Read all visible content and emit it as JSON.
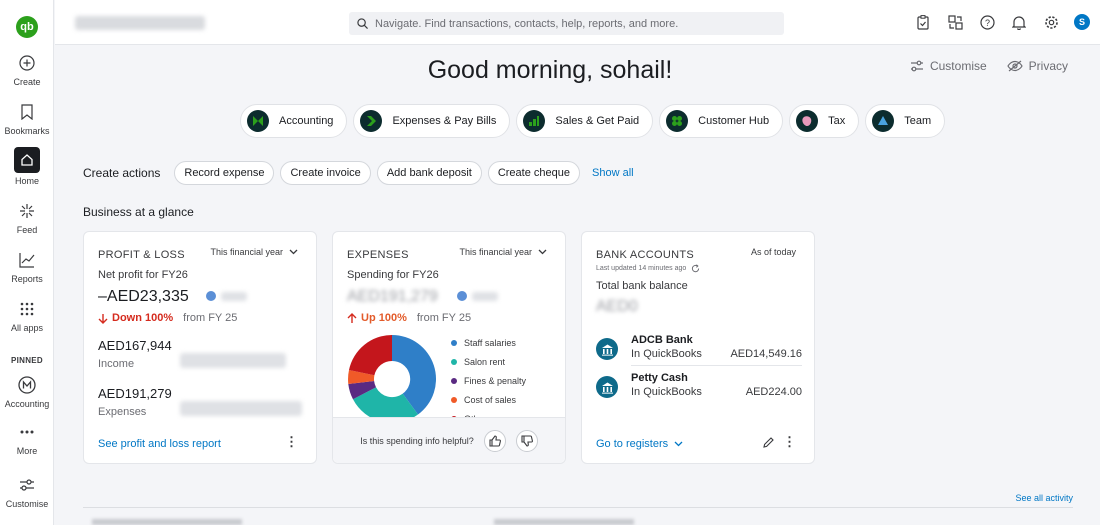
{
  "app": {
    "logo_text": "qb",
    "company_name_blurred": true
  },
  "search": {
    "placeholder": "Navigate. Find transactions, contacts, help, reports, and more."
  },
  "rail": {
    "items": [
      {
        "label": "Create",
        "icon": "plus-circle-icon"
      },
      {
        "label": "Bookmarks",
        "icon": "bookmark-icon"
      },
      {
        "label": "Home",
        "icon": "home-icon",
        "active": true
      },
      {
        "label": "Feed",
        "icon": "sparkle-icon"
      },
      {
        "label": "Reports",
        "icon": "line-chart-icon"
      },
      {
        "label": "All apps",
        "icon": "grid-icon"
      }
    ],
    "pinned_label": "PINNED",
    "pinned": [
      {
        "label": "Accounting",
        "icon": "accounting-icon"
      },
      {
        "label": "More",
        "icon": "more-dots-icon"
      }
    ],
    "customise_label": "Customise"
  },
  "topbar": {
    "icons": [
      "task-icon",
      "apps-switch-icon",
      "help-icon",
      "bell-icon",
      "gear-icon"
    ],
    "avatar": "S"
  },
  "greeting": "Good morning, sohail!",
  "page_links": {
    "customise": "Customise",
    "privacy": "Privacy"
  },
  "hubs": [
    {
      "label": "Accounting",
      "color": "#2ca01c"
    },
    {
      "label": "Expenses & Pay Bills",
      "color": "#2ca01c"
    },
    {
      "label": "Sales & Get Paid",
      "color": "#2ca01c"
    },
    {
      "label": "Customer Hub",
      "color": "#2ca01c"
    },
    {
      "label": "Tax",
      "color": "#e89abc"
    },
    {
      "label": "Team",
      "color": "#4aa3df"
    }
  ],
  "create_actions": {
    "title": "Create actions",
    "buttons": [
      "Record expense",
      "Create invoice",
      "Add bank deposit",
      "Create cheque"
    ],
    "show_all": "Show all"
  },
  "glance_title": "Business at a glance",
  "profit_loss": {
    "title": "PROFIT & LOSS",
    "period": "This financial year",
    "subtitle": "Net profit for FY26",
    "net": "–AED23,335",
    "change": "Down 100%",
    "from": "from FY 25",
    "income_value": "AED167,944",
    "income_label": "Income",
    "expenses_value": "AED191,279",
    "expenses_label": "Expenses",
    "link": "See profit and loss report"
  },
  "expenses": {
    "title": "EXPENSES",
    "period": "This financial year",
    "subtitle": "Spending for FY26",
    "total": "AED191,279",
    "change": "Up 100%",
    "from": "from FY 25",
    "legend": [
      {
        "label": "Staff salaries",
        "color": "#2f7fc8"
      },
      {
        "label": "Salon rent",
        "color": "#1fb5a8"
      },
      {
        "label": "Fines & penalty",
        "color": "#5a2a82"
      },
      {
        "label": "Cost of sales",
        "color": "#f05a28"
      },
      {
        "label": "Other",
        "color": "#c4161c"
      }
    ],
    "helpful_question": "Is this spending info helpful?"
  },
  "bank": {
    "title": "BANK ACCOUNTS",
    "as_of": "As of today",
    "updated": "Last updated 14 minutes ago",
    "total_label": "Total bank balance",
    "total": "AED0",
    "accounts": [
      {
        "name": "ADCB Bank",
        "sub": "In QuickBooks",
        "amount": "AED14,549.16"
      },
      {
        "name": "Petty Cash",
        "sub": "In QuickBooks",
        "amount": "AED224.00"
      }
    ],
    "link": "Go to registers"
  },
  "footer": {
    "see_all_activity": "See all activity"
  }
}
